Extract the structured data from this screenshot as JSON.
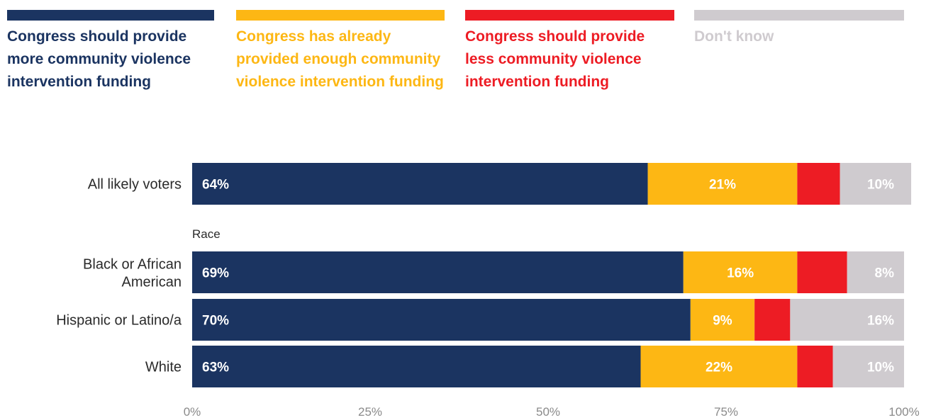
{
  "chart_data": {
    "type": "bar",
    "orientation": "horizontal",
    "stacked": true,
    "legend_position": "top",
    "grid": false,
    "xlim": [
      0,
      100
    ],
    "x_ticks": [
      "0%",
      "25%",
      "50%",
      "75%",
      "100%"
    ],
    "series": [
      {
        "name": "Congress should provide more community violence intervention funding",
        "color": "#1b3461"
      },
      {
        "name": "Congress has already provided enough community violence intervention funding",
        "color": "#fdb714"
      },
      {
        "name": "Congress should provide less community violence intervention funding",
        "color": "#ed1c24"
      },
      {
        "name": "Don't know",
        "color": "#cfcbcf"
      }
    ],
    "rows": [
      {
        "label": "All likely voters",
        "values": [
          64,
          21,
          6,
          10
        ],
        "labels": [
          "64%",
          "21%",
          "",
          "10%"
        ]
      },
      {
        "group": "Race"
      },
      {
        "label": "Black or African American",
        "values": [
          69,
          16,
          7,
          8
        ],
        "labels": [
          "69%",
          "16%",
          "",
          "8%"
        ]
      },
      {
        "label": "Hispanic or Latino/a",
        "values": [
          70,
          9,
          5,
          16
        ],
        "labels": [
          "70%",
          "9%",
          "",
          "16%"
        ]
      },
      {
        "label": "White",
        "values": [
          63,
          22,
          5,
          10
        ],
        "labels": [
          "63%",
          "22%",
          "",
          "10%"
        ]
      }
    ]
  }
}
